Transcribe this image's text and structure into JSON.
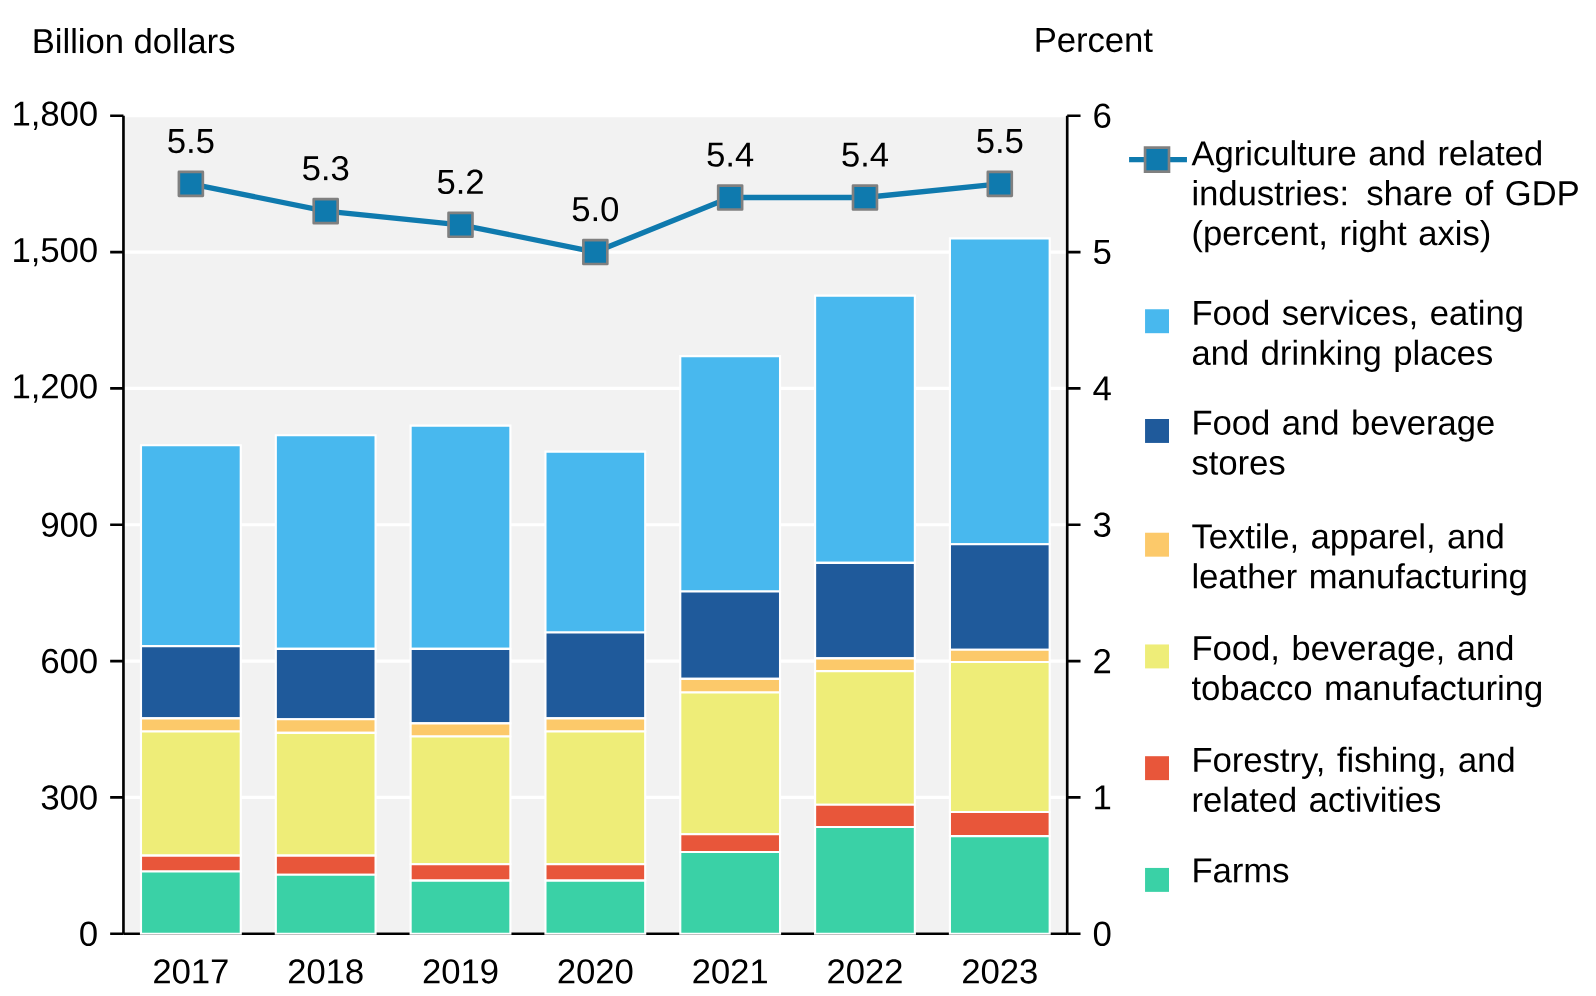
{
  "chart_data": {
    "type": "bar",
    "stacked": true,
    "ylabel": "Billion dollars",
    "y2label": "Percent",
    "categories": [
      "2017",
      "2018",
      "2019",
      "2020",
      "2021",
      "2022",
      "2023"
    ],
    "ylim": [
      0,
      1800
    ],
    "yticks": [
      0,
      300,
      600,
      900,
      {
        "value": 1200,
        "label": "1,200"
      },
      {
        "value": 1500,
        "label": "1,500"
      },
      {
        "value": 1800,
        "label": "1,800"
      }
    ],
    "y2lim": [
      0,
      6
    ],
    "y2ticks": [
      0,
      1,
      2,
      3,
      4,
      5,
      6
    ],
    "grid": "y",
    "legend": "right",
    "series": [
      {
        "name": "Agriculture and related industries: share of GDP (percent, right axis)",
        "type": "line",
        "axis": "y2",
        "marker": "square",
        "line_style": "solid",
        "color": "#0f7aae",
        "values": [
          5.5,
          5.3,
          5.2,
          5.0,
          5.4,
          5.4,
          5.5
        ],
        "value_labels": [
          "5.5",
          "5.3",
          "5.2",
          "5.0",
          "5.4",
          "5.4",
          "5.5"
        ]
      },
      {
        "name": "Farms",
        "color": "#3ad1a6",
        "values": [
          137,
          130,
          117,
          117,
          180,
          235,
          215
        ]
      },
      {
        "name": "Forestry, fishing, and related activities",
        "color": "#e8563a",
        "values": [
          35,
          42,
          36,
          36,
          39,
          49,
          53
        ]
      },
      {
        "name": "Food, beverage, and tobacco manufacturing",
        "color": "#eeed78",
        "values": [
          273,
          270,
          281,
          292,
          312,
          294,
          330
        ]
      },
      {
        "name": "Textile, apparel, and leather manufacturing",
        "color": "#fcc96a",
        "values": [
          29,
          30,
          29,
          29,
          30,
          28,
          27
        ]
      },
      {
        "name": "Food and beverage stores",
        "color": "#1f5a9b",
        "values": [
          159,
          155,
          164,
          189,
          192,
          210,
          232
        ]
      },
      {
        "name": "Food services, eating and drinking places",
        "color": "#48b8ee",
        "values": [
          442,
          470,
          491,
          398,
          518,
          588,
          673
        ]
      }
    ]
  }
}
